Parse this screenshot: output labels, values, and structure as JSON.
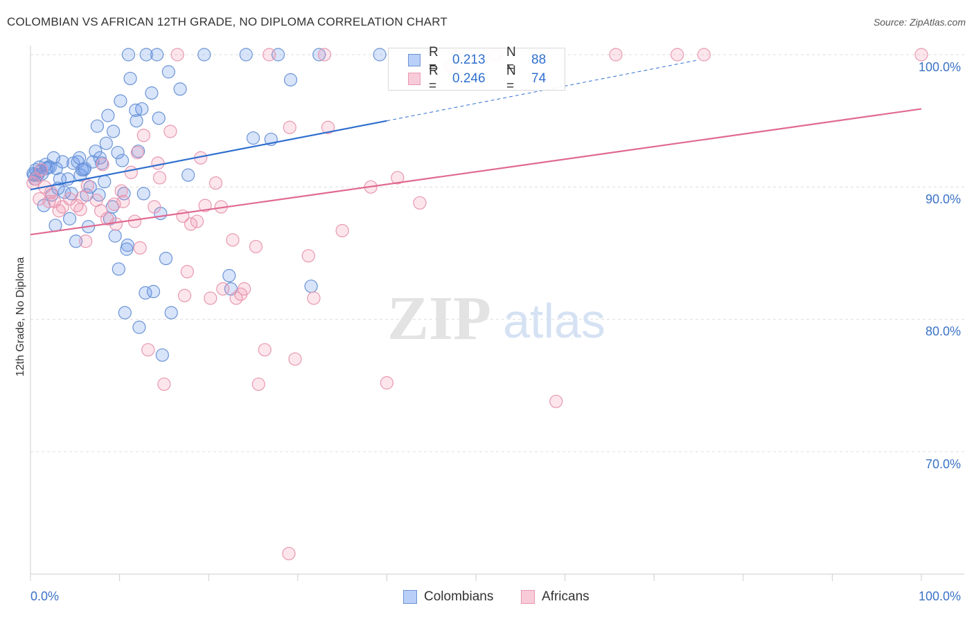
{
  "title": "COLOMBIAN VS AFRICAN 12TH GRADE, NO DIPLOMA CORRELATION CHART",
  "source": "Source: ZipAtlas.com",
  "watermark": {
    "zip": "ZIP",
    "atlas": "atlas"
  },
  "legend": {
    "r_label": "R =",
    "n_label": "N =",
    "blue": {
      "r": "0.213",
      "n": "88"
    },
    "pink": {
      "r": "0.246",
      "n": "74"
    }
  },
  "bottom_legend": {
    "blue": "Colombians",
    "pink": "Africans"
  },
  "colors": {
    "blue": "#6a93d6",
    "blue_fill": "rgba(100,149,237,0.25)",
    "blue_line": "#2f6fce",
    "pink": "#e897b1",
    "pink_fill": "rgba(240,140,170,0.22)",
    "pink_line": "#e06990",
    "tick_text": "#3a72c6"
  },
  "chart_data": {
    "type": "scatter",
    "title": "COLOMBIAN VS AFRICAN 12TH GRADE, NO DIPLOMA CORRELATION CHART",
    "xlabel": "",
    "ylabel": "12th Grade, No Diploma",
    "x_tick_labels": [
      "0.0%",
      "100.0%"
    ],
    "y_tick_labels": [
      "100.0%",
      "90.0%",
      "80.0%",
      "70.0%"
    ],
    "xlim": [
      0,
      100
    ],
    "ylim": [
      61.5,
      101.5
    ],
    "grid": true,
    "legend_position": "top-center",
    "series": [
      {
        "name": "Colombians",
        "r": 0.213,
        "n": 88,
        "trend": {
          "x": [
            0,
            40
          ],
          "y": [
            89.8,
            95.0
          ],
          "dashed_to": [
            75,
            99.6
          ]
        },
        "points": [
          [
            0.3,
            91.0
          ],
          [
            0.5,
            90.6
          ],
          [
            0.6,
            91.3
          ],
          [
            0.8,
            90.9
          ],
          [
            1.0,
            91.5
          ],
          [
            1.3,
            91.0
          ],
          [
            1.5,
            88.6
          ],
          [
            1.7,
            91.7
          ],
          [
            2.0,
            91.5
          ],
          [
            2.2,
            91.5
          ],
          [
            2.4,
            89.4
          ],
          [
            2.6,
            92.2
          ],
          [
            2.8,
            87.1
          ],
          [
            3.3,
            90.6
          ],
          [
            3.6,
            91.9
          ],
          [
            3.8,
            89.6
          ],
          [
            4.2,
            90.6
          ],
          [
            4.4,
            87.6
          ],
          [
            4.6,
            89.5
          ],
          [
            4.8,
            91.8
          ],
          [
            5.1,
            85.9
          ],
          [
            5.3,
            91.9
          ],
          [
            5.5,
            92.2
          ],
          [
            5.6,
            90.9
          ],
          [
            5.8,
            91.3
          ],
          [
            6.0,
            91.3
          ],
          [
            6.3,
            89.4
          ],
          [
            6.5,
            87.0
          ],
          [
            6.7,
            90.0
          ],
          [
            7.0,
            91.9
          ],
          [
            7.3,
            92.7
          ],
          [
            7.5,
            94.6
          ],
          [
            7.8,
            92.2
          ],
          [
            8.0,
            91.8
          ],
          [
            8.3,
            90.4
          ],
          [
            8.5,
            93.3
          ],
          [
            8.7,
            95.4
          ],
          [
            8.9,
            87.6
          ],
          [
            9.3,
            94.2
          ],
          [
            9.5,
            86.3
          ],
          [
            9.8,
            92.6
          ],
          [
            9.9,
            83.8
          ],
          [
            10.1,
            96.5
          ],
          [
            10.3,
            92.0
          ],
          [
            10.5,
            89.5
          ],
          [
            10.6,
            80.5
          ],
          [
            10.8,
            85.3
          ],
          [
            10.9,
            85.6
          ],
          [
            11.0,
            100.0
          ],
          [
            11.2,
            98.2
          ],
          [
            11.8,
            95.8
          ],
          [
            11.9,
            95.0
          ],
          [
            12.1,
            92.7
          ],
          [
            12.2,
            79.4
          ],
          [
            12.5,
            95.9
          ],
          [
            12.7,
            89.5
          ],
          [
            12.9,
            82.0
          ],
          [
            13.0,
            100.0
          ],
          [
            13.6,
            97.1
          ],
          [
            13.8,
            82.1
          ],
          [
            14.2,
            100.0
          ],
          [
            14.4,
            95.2
          ],
          [
            14.6,
            88.0
          ],
          [
            14.8,
            77.3
          ],
          [
            15.2,
            84.6
          ],
          [
            15.5,
            98.7
          ],
          [
            15.8,
            80.5
          ],
          [
            16.8,
            97.4
          ],
          [
            17.7,
            90.9
          ],
          [
            19.5,
            100.0
          ],
          [
            22.3,
            83.3
          ],
          [
            22.5,
            82.3
          ],
          [
            24.2,
            100.0
          ],
          [
            25.0,
            93.7
          ],
          [
            27.0,
            93.6
          ],
          [
            27.8,
            100.0
          ],
          [
            29.2,
            98.1
          ],
          [
            31.5,
            82.5
          ],
          [
            32.4,
            100.0
          ],
          [
            39.2,
            100.0
          ],
          [
            0.4,
            90.9
          ],
          [
            1.1,
            91.2
          ],
          [
            1.8,
            91.4
          ],
          [
            2.9,
            91.4
          ],
          [
            3.1,
            89.9
          ],
          [
            6.1,
            91.4
          ],
          [
            7.7,
            89.4
          ],
          [
            9.2,
            88.5
          ]
        ]
      },
      {
        "name": "Africans",
        "r": 0.246,
        "n": 74,
        "trend": {
          "x": [
            0,
            100
          ],
          "y": [
            86.4,
            95.9
          ]
        },
        "points": [
          [
            0.3,
            90.3
          ],
          [
            0.6,
            90.6
          ],
          [
            1.0,
            89.1
          ],
          [
            1.2,
            91.3
          ],
          [
            1.6,
            90.0
          ],
          [
            2.1,
            88.9
          ],
          [
            2.3,
            89.6
          ],
          [
            3.2,
            88.2
          ],
          [
            3.6,
            88.5
          ],
          [
            4.4,
            89.1
          ],
          [
            5.2,
            88.6
          ],
          [
            5.6,
            88.3
          ],
          [
            6.2,
            85.9
          ],
          [
            6.4,
            90.1
          ],
          [
            7.4,
            89.0
          ],
          [
            7.9,
            88.2
          ],
          [
            8.1,
            91.7
          ],
          [
            8.6,
            87.6
          ],
          [
            9.4,
            88.7
          ],
          [
            9.6,
            87.2
          ],
          [
            10.2,
            89.7
          ],
          [
            10.4,
            88.9
          ],
          [
            11.3,
            91.1
          ],
          [
            11.7,
            87.4
          ],
          [
            12.3,
            85.4
          ],
          [
            12.7,
            93.9
          ],
          [
            13.2,
            77.7
          ],
          [
            13.9,
            88.5
          ],
          [
            14.3,
            91.8
          ],
          [
            14.5,
            90.7
          ],
          [
            15.0,
            75.1
          ],
          [
            15.7,
            94.2
          ],
          [
            16.5,
            100.0
          ],
          [
            17.1,
            87.8
          ],
          [
            17.3,
            81.8
          ],
          [
            17.6,
            83.6
          ],
          [
            18.0,
            87.2
          ],
          [
            18.7,
            87.4
          ],
          [
            19.1,
            92.2
          ],
          [
            19.6,
            88.6
          ],
          [
            20.2,
            81.6
          ],
          [
            20.8,
            90.3
          ],
          [
            21.4,
            88.5
          ],
          [
            21.6,
            82.3
          ],
          [
            22.7,
            86.0
          ],
          [
            23.1,
            81.6
          ],
          [
            23.6,
            81.9
          ],
          [
            24.0,
            82.3
          ],
          [
            25.3,
            85.5
          ],
          [
            25.6,
            75.1
          ],
          [
            26.3,
            77.7
          ],
          [
            26.8,
            100.0
          ],
          [
            29.1,
            94.5
          ],
          [
            29.7,
            77.0
          ],
          [
            31.2,
            84.8
          ],
          [
            31.8,
            81.6
          ],
          [
            33.4,
            94.5
          ],
          [
            33.0,
            100.0
          ],
          [
            35.0,
            86.7
          ],
          [
            38.2,
            90.0
          ],
          [
            40.0,
            75.2
          ],
          [
            41.2,
            90.7
          ],
          [
            43.7,
            88.8
          ],
          [
            47.2,
            99.2
          ],
          [
            52.2,
            100.0
          ],
          [
            59.0,
            73.8
          ],
          [
            65.7,
            100.0
          ],
          [
            72.6,
            100.0
          ],
          [
            75.6,
            100.0
          ],
          [
            100.0,
            100.0
          ],
          [
            29.0,
            62.3
          ],
          [
            2.7,
            88.9
          ],
          [
            5.8,
            89.2
          ],
          [
            12.0,
            92.6
          ]
        ]
      }
    ]
  }
}
